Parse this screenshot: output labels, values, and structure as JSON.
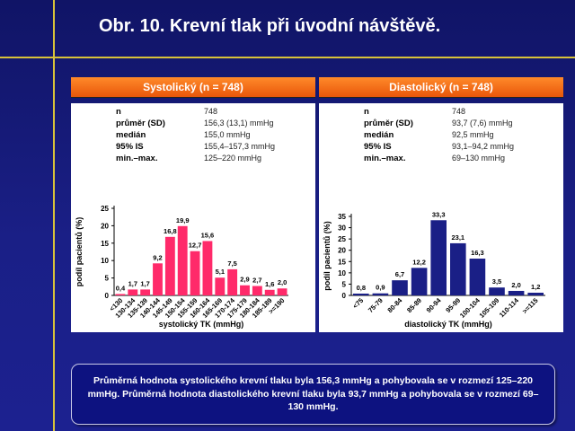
{
  "slide": {
    "title": "Obr. 10. Krevní tlak při úvodní návštěvě.",
    "summary": "Průměrná hodnota systolického krevní tlaku byla 156,3 mmHg a pohybovala se v rozmezí 125–220 mmHg. Průměrná hodnota diastolického krevní tlaku byla 93,7 mmHg a pohybovala se v rozmezí 69–130 mmHg.",
    "accent_color": "#d8c23a",
    "header_color": "#e8560a",
    "bar_color_pink": "#ff2a6a",
    "bar_color_navy": "#1a1f86"
  },
  "panels": [
    {
      "header": "Systolický (n = 748)",
      "stats": [
        {
          "label": "n",
          "value": "748"
        },
        {
          "label": "průměr (SD)",
          "value": "156,3 (13,1) mmHg"
        },
        {
          "label": "medián",
          "value": "155,0 mmHg"
        },
        {
          "label": "95% IS",
          "value": "155,4–157,3 mmHg"
        },
        {
          "label": "min.–max.",
          "value": "125–220 mmHg"
        }
      ]
    },
    {
      "header": "Diastolický (n = 748)",
      "stats": [
        {
          "label": "n",
          "value": "748"
        },
        {
          "label": "průměr (SD)",
          "value": "93,7 (7,6) mmHg"
        },
        {
          "label": "medián",
          "value": "92,5 mmHg"
        },
        {
          "label": "95% IS",
          "value": "93,1–94,2 mmHg"
        },
        {
          "label": "min.–max.",
          "value": "69–130 mmHg"
        }
      ]
    }
  ],
  "chart_data": [
    {
      "type": "bar",
      "title": "",
      "xlabel": "systolický TK (mmHg)",
      "ylabel": "podíl pacientů (%)",
      "ylim": [
        0,
        25
      ],
      "yticks": [
        0,
        5,
        10,
        15,
        20,
        25
      ],
      "grid": false,
      "categories": [
        "<130",
        "130-134",
        "135-139",
        "140-144",
        "145-149",
        "150-154",
        "155-159",
        "160-164",
        "165-169",
        "170-174",
        "175-179",
        "180-184",
        "185-189",
        ">=190"
      ],
      "values": [
        0.4,
        1.7,
        1.7,
        9.2,
        16.8,
        19.9,
        12.7,
        15.6,
        5.1,
        7.5,
        2.9,
        2.7,
        1.6,
        2.0
      ],
      "value_labels": [
        "0,4",
        "1,7",
        "1,7",
        "9,2",
        "16,8",
        "19,9",
        "12,7",
        "15,6",
        "5,1",
        "7,5",
        "2,9",
        "2,7",
        "1,6",
        "2,0"
      ],
      "bar_color": "#ff2a6a"
    },
    {
      "type": "bar",
      "title": "",
      "xlabel": "diastolický TK (mmHg)",
      "ylabel": "podíl pacientů (%)",
      "ylim": [
        0,
        35
      ],
      "yticks": [
        0,
        5,
        10,
        15,
        20,
        25,
        30,
        35
      ],
      "grid": false,
      "categories": [
        "<75",
        "75-79",
        "80-84",
        "85-89",
        "90-94",
        "95-99",
        "100-104",
        "105-109",
        "110-114",
        ">=115"
      ],
      "values": [
        0.8,
        0.9,
        6.7,
        12.2,
        33.3,
        23.1,
        16.3,
        3.5,
        2.0,
        1.2
      ],
      "value_labels": [
        "0,8",
        "0,9",
        "6,7",
        "12,2",
        "33,3",
        "23,1",
        "16,3",
        "3,5",
        "2,0",
        "1,2"
      ],
      "bar_color": "#1a1f86"
    }
  ]
}
